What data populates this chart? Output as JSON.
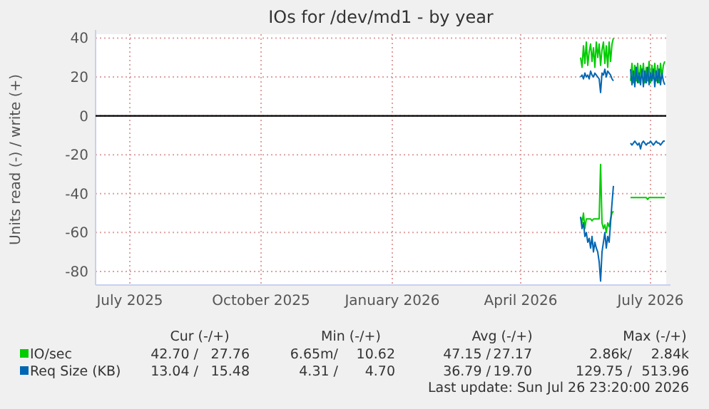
{
  "chart_data": {
    "type": "line",
    "title": "IOs for /dev/md1 - by year",
    "ylabel": "Units read (-) / write (+)",
    "x": [
      "2026-05-27",
      "2026-05-28",
      "2026-05-29",
      "2026-05-30",
      "2026-05-31",
      "2026-06-01",
      "2026-06-02",
      "2026-06-03",
      "2026-06-04",
      "2026-06-05",
      "2026-06-06",
      "2026-06-07",
      "2026-06-08",
      "2026-06-09",
      "2026-06-10",
      "2026-06-11",
      "2026-06-12",
      "2026-06-13",
      "2026-06-14",
      "2026-06-15",
      "2026-06-16",
      "2026-06-17",
      "2026-06-18",
      "2026-06-19",
      "2026-06-25",
      "2026-07-01",
      "2026-07-02",
      "2026-07-03",
      "2026-07-04",
      "2026-07-05",
      "2026-07-06",
      "2026-07-07",
      "2026-07-08",
      "2026-07-09",
      "2026-07-10",
      "2026-07-11",
      "2026-07-12",
      "2026-07-13",
      "2026-07-14",
      "2026-07-15",
      "2026-07-16",
      "2026-07-17",
      "2026-07-18",
      "2026-07-19",
      "2026-07-20",
      "2026-07-21",
      "2026-07-22",
      "2026-07-23",
      "2026-07-24",
      "2026-07-25"
    ],
    "series": [
      {
        "color": "#00cc00",
        "values": [
          -52,
          -55,
          -50,
          -58,
          -53,
          -53,
          -53,
          -53,
          -54,
          -53,
          -53,
          -53,
          -53,
          -53,
          -25,
          -55,
          -58,
          -56,
          -60,
          -55,
          -57,
          -53,
          -50,
          -49,
          null,
          -42,
          -42,
          -42,
          -42,
          -42,
          -42,
          -42,
          -42,
          -42,
          -42,
          -42,
          -42,
          -43,
          -42,
          -42,
          -42,
          -42,
          -42,
          -42,
          -42,
          -42,
          -42,
          -42,
          -42,
          -42
        ]
      },
      {
        "name": "IO/sec",
        "color": "#00cc00",
        "values": [
          30,
          25,
          36,
          27,
          38,
          26,
          33,
          37,
          28,
          35,
          25,
          38,
          30,
          37,
          26,
          34,
          38,
          27,
          36,
          25,
          38,
          28,
          37,
          40,
          null,
          18,
          27,
          17,
          26,
          18,
          27,
          17,
          26,
          20,
          27,
          17,
          25,
          18,
          28,
          17,
          26,
          19,
          27,
          18,
          26,
          17,
          27,
          20,
          26,
          28
        ]
      },
      {
        "color": "#0066b3",
        "values": [
          -52,
          -58,
          -55,
          -62,
          -60,
          -65,
          -63,
          -68,
          -62,
          -70,
          -65,
          -68,
          -70,
          -75,
          -85,
          -70,
          -65,
          -60,
          -68,
          -62,
          -65,
          -55,
          -45,
          -36,
          null,
          -14,
          -15,
          -14,
          -13,
          -14,
          -15,
          -14,
          -17,
          -14,
          -13,
          -14,
          -15,
          -14,
          -14,
          -13,
          -14,
          -15,
          -14,
          -13,
          -14,
          -14,
          -15,
          -14,
          -13,
          -13
        ]
      },
      {
        "name": "Req Size (KB)",
        "color": "#0066b3",
        "values": [
          20,
          21,
          19,
          22,
          20,
          21,
          19,
          23,
          21,
          20,
          22,
          21,
          20,
          19,
          12,
          22,
          21,
          24,
          20,
          23,
          22,
          21,
          19,
          18,
          null,
          24,
          16,
          23,
          15,
          25,
          17,
          22,
          16,
          24,
          15,
          23,
          17,
          25,
          16,
          22,
          18,
          24,
          15,
          23,
          17,
          24,
          16,
          22,
          18,
          16
        ]
      }
    ],
    "xlim": [
      "2025-06-21",
      "2026-07-26"
    ],
    "xticks": [
      {
        "value": "2025-07-15",
        "label": "July 2025"
      },
      {
        "value": "2025-10-15",
        "label": "October 2025"
      },
      {
        "value": "2026-01-15",
        "label": "January 2026"
      },
      {
        "value": "2026-04-15",
        "label": "April 2026"
      },
      {
        "value": "2026-07-15",
        "label": "July 2026"
      }
    ],
    "ylim": [
      -87,
      42
    ],
    "yticks": [
      -80,
      -60,
      -40,
      -20,
      0,
      20,
      40
    ],
    "ref_lines": [
      {
        "axis": "y",
        "value": 0,
        "color": "#000000"
      }
    ],
    "grid": true,
    "legend": "bottom",
    "marker": "none",
    "line_style": "solid",
    "annotations": [
      "Cur (-/+)",
      "Min (-/+)",
      "Avg (-/+)",
      "Max (-/+)",
      "42.70 /",
      "27.76",
      "6.65m/",
      "10.62",
      "47.15 /",
      "27.17",
      "2.86k/",
      "2.84k",
      "13.04 /",
      "15.48",
      "4.31 /",
      "4.70",
      "36.79 /",
      "19.70",
      "129.75 /",
      "513.96",
      "Last update: Sun Jul 26 23:20:00 2026"
    ]
  }
}
